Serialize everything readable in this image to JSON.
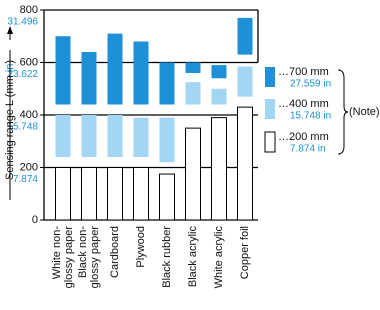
{
  "chart_data": {
    "type": "floating-bar",
    "y_label": {
      "text": "Sensing range L (mm",
      "secondary": "in",
      "close": ")"
    },
    "categories": [
      [
        "White non-",
        "glossy paper"
      ],
      [
        "Black non-",
        "glossy paper"
      ],
      [
        "Cardboard"
      ],
      [
        "Plywood"
      ],
      [
        "Black rubber"
      ],
      [
        "Black acrylic"
      ],
      [
        "White acrylic"
      ],
      [
        "Copper foil"
      ]
    ],
    "series": [
      {
        "name": "…200 mm",
        "name_in": "7.874 in",
        "color": "#ffffff",
        "low": [
          0,
          0,
          0,
          0,
          0,
          0,
          0,
          0
        ],
        "high": [
          200,
          200,
          200,
          200,
          175,
          350,
          390,
          430
        ]
      },
      {
        "name": "…400 mm",
        "name_in": "15.748 in",
        "color": "#a3d5f5",
        "low": [
          240,
          240,
          240,
          240,
          220,
          440,
          440,
          470
        ],
        "high": [
          400,
          400,
          400,
          390,
          390,
          525,
          500,
          585
        ]
      },
      {
        "name": "…700 mm",
        "name_in": "27.559 in",
        "color": "#1e90d8",
        "low": [
          440,
          440,
          440,
          440,
          440,
          560,
          540,
          630
        ],
        "high": [
          700,
          640,
          710,
          680,
          600,
          600,
          590,
          770
        ]
      }
    ],
    "note": "(Note)",
    "ylim": [
      0,
      800
    ],
    "yticks": [
      0,
      200,
      400,
      600,
      800
    ],
    "yticks_in": [
      {
        "value": 200,
        "label": "7.874"
      },
      {
        "value": 400,
        "label": "15.748"
      },
      {
        "value": 600,
        "label": "23.622"
      },
      {
        "value": 800,
        "label": "31.496"
      }
    ],
    "grid": true
  }
}
